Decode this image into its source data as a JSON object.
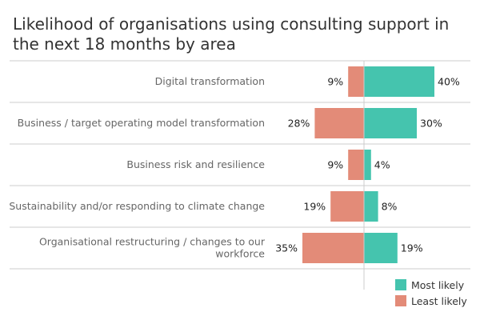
{
  "chart_data": {
    "type": "bar",
    "orientation": "horizontal-diverging",
    "title": "Likelihood of organisations using consulting support in the next 18 months by area",
    "categories": [
      [
        "Digital transformation"
      ],
      [
        "Business / target operating model transformation"
      ],
      [
        "Business risk and resilience"
      ],
      [
        "Sustainability and/or responding to climate change"
      ],
      [
        "Organisational restructuring / changes to our",
        "workforce"
      ]
    ],
    "series": [
      {
        "name": "Most likely",
        "values": [
          40,
          30,
          4,
          8,
          19
        ],
        "color": "#45c4ae",
        "direction": "right"
      },
      {
        "name": "Least likely",
        "values": [
          9,
          28,
          9,
          19,
          35
        ],
        "color": "#e38b78",
        "direction": "left"
      }
    ],
    "value_suffix": "%",
    "legend_position": "bottom-right",
    "grid": false
  }
}
